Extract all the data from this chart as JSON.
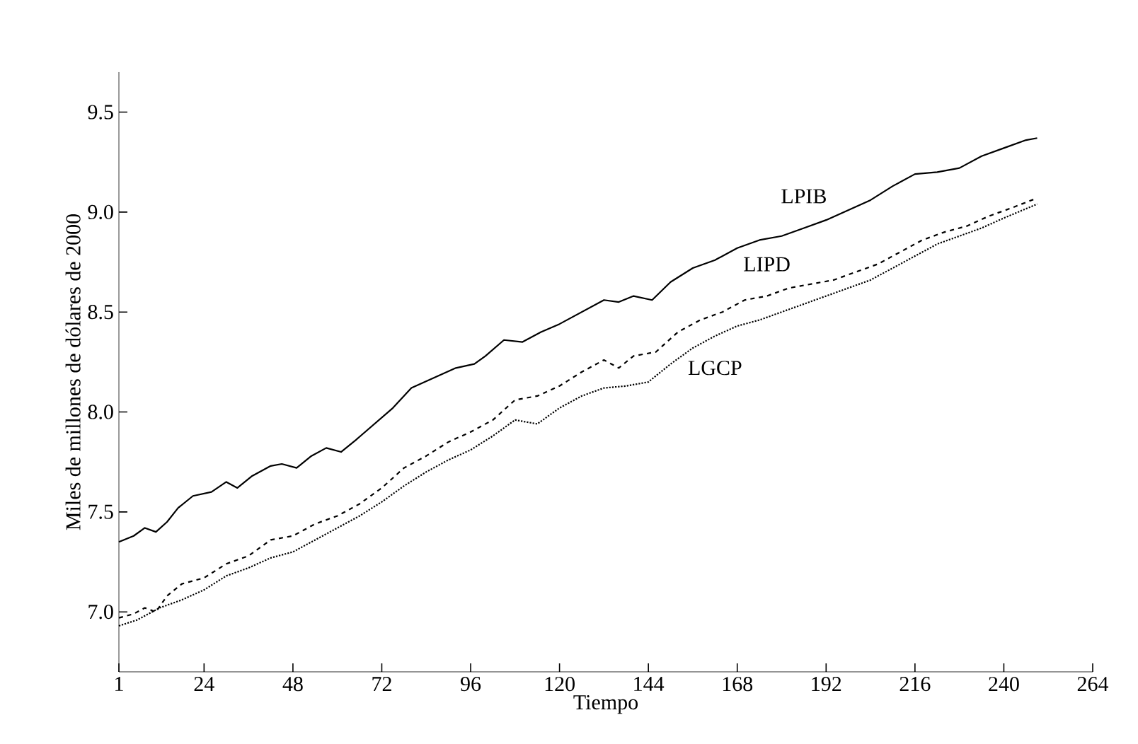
{
  "chart_data": {
    "type": "line",
    "xlabel": "Tiempo",
    "ylabel": "Miles de millones de dólares de 2000",
    "xlim": [
      1,
      264
    ],
    "ylim": [
      6.7,
      9.7
    ],
    "xticks": [
      1,
      24,
      48,
      72,
      96,
      120,
      144,
      168,
      192,
      216,
      240,
      264
    ],
    "yticks": [
      {
        "value": 7,
        "label": "7.0"
      },
      7.5,
      {
        "value": 8,
        "label": "8.0"
      },
      8.5,
      {
        "value": 9,
        "label": "9.0"
      },
      9.5
    ],
    "grid": false,
    "legend": false,
    "marker": "none",
    "series": [
      {
        "name": "LPIB",
        "color": "#000000",
        "line_style": "solid",
        "x": [
          1,
          5,
          8,
          11,
          14,
          17,
          21,
          26,
          30,
          33,
          37,
          42,
          45,
          49,
          53,
          57,
          61,
          65,
          70,
          75,
          80,
          86,
          92,
          97,
          100,
          105,
          110,
          115,
          120,
          126,
          132,
          136,
          140,
          145,
          150,
          156,
          162,
          168,
          174,
          180,
          186,
          192,
          198,
          204,
          210,
          216,
          222,
          228,
          234,
          240,
          246,
          249
        ],
        "values": [
          7.35,
          7.38,
          7.42,
          7.4,
          7.45,
          7.52,
          7.58,
          7.6,
          7.65,
          7.62,
          7.68,
          7.73,
          7.74,
          7.72,
          7.78,
          7.82,
          7.8,
          7.86,
          7.94,
          8.02,
          8.12,
          8.17,
          8.22,
          8.24,
          8.28,
          8.36,
          8.35,
          8.4,
          8.44,
          8.5,
          8.56,
          8.55,
          8.58,
          8.56,
          8.65,
          8.72,
          8.76,
          8.82,
          8.86,
          8.88,
          8.92,
          8.96,
          9.01,
          9.06,
          9.13,
          9.19,
          9.2,
          9.22,
          9.28,
          9.32,
          9.36,
          9.37
        ]
      },
      {
        "name": "LIPD",
        "color": "#000000",
        "line_style": "dashed",
        "x": [
          1,
          5,
          8,
          11,
          14,
          18,
          24,
          30,
          36,
          42,
          48,
          54,
          60,
          66,
          72,
          78,
          84,
          90,
          96,
          102,
          108,
          114,
          120,
          126,
          132,
          136,
          140,
          146,
          152,
          158,
          164,
          170,
          176,
          182,
          188,
          194,
          200,
          206,
          212,
          218,
          224,
          230,
          236,
          242,
          249
        ],
        "values": [
          6.97,
          6.99,
          7.02,
          7.0,
          7.08,
          7.14,
          7.17,
          7.24,
          7.28,
          7.36,
          7.38,
          7.44,
          7.48,
          7.54,
          7.62,
          7.72,
          7.78,
          7.85,
          7.9,
          7.96,
          8.06,
          8.08,
          8.13,
          8.2,
          8.26,
          8.22,
          8.28,
          8.3,
          8.4,
          8.46,
          8.5,
          8.56,
          8.58,
          8.62,
          8.64,
          8.66,
          8.7,
          8.74,
          8.8,
          8.86,
          8.9,
          8.93,
          8.98,
          9.02,
          9.07
        ]
      },
      {
        "name": "LGCP",
        "color": "#000000",
        "line_style": "dotted",
        "x": [
          1,
          6,
          12,
          18,
          24,
          30,
          36,
          42,
          48,
          54,
          60,
          66,
          72,
          78,
          84,
          90,
          96,
          102,
          108,
          114,
          120,
          126,
          132,
          138,
          144,
          150,
          156,
          162,
          168,
          174,
          180,
          186,
          192,
          198,
          204,
          210,
          216,
          222,
          228,
          234,
          240,
          249
        ],
        "values": [
          6.93,
          6.96,
          7.02,
          7.06,
          7.11,
          7.18,
          7.22,
          7.27,
          7.3,
          7.36,
          7.42,
          7.48,
          7.55,
          7.63,
          7.7,
          7.76,
          7.81,
          7.88,
          7.96,
          7.94,
          8.02,
          8.08,
          8.12,
          8.13,
          8.15,
          8.24,
          8.32,
          8.38,
          8.43,
          8.46,
          8.5,
          8.54,
          8.58,
          8.62,
          8.66,
          8.72,
          8.78,
          8.84,
          8.88,
          8.92,
          8.97,
          9.04
        ]
      }
    ]
  }
}
